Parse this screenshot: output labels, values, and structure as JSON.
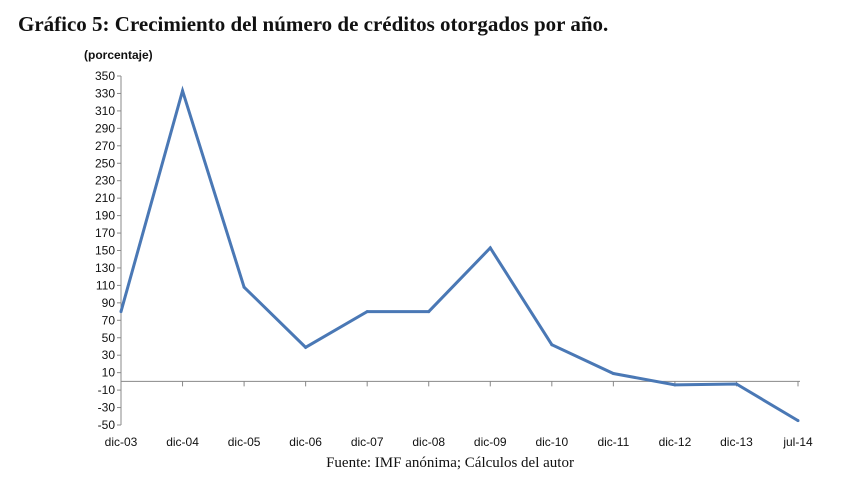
{
  "chart_data": {
    "type": "line",
    "title": "Gráfico 5: Crecimiento del número de créditos otorgados por año.",
    "ylabel": "(porcentaje)",
    "xlabel": "",
    "source": "Fuente: IMF anónima; Cálculos del autor",
    "categories": [
      "dic-03",
      "dic-04",
      "dic-05",
      "dic-06",
      "dic-07",
      "dic-08",
      "dic-09",
      "dic-10",
      "dic-11",
      "dic-12",
      "dic-13",
      "jul-14"
    ],
    "values": [
      80,
      333,
      108,
      39,
      80,
      80,
      153,
      42,
      9,
      -4,
      -3,
      -45
    ],
    "ylim": [
      -50,
      350
    ],
    "yticks": [
      350,
      330,
      310,
      290,
      270,
      250,
      230,
      210,
      190,
      170,
      150,
      130,
      110,
      90,
      70,
      50,
      30,
      10,
      -10,
      -30,
      -50
    ],
    "grid": false,
    "legend": "none",
    "line_color": "#4a78b5",
    "axis_color": "#888888"
  }
}
